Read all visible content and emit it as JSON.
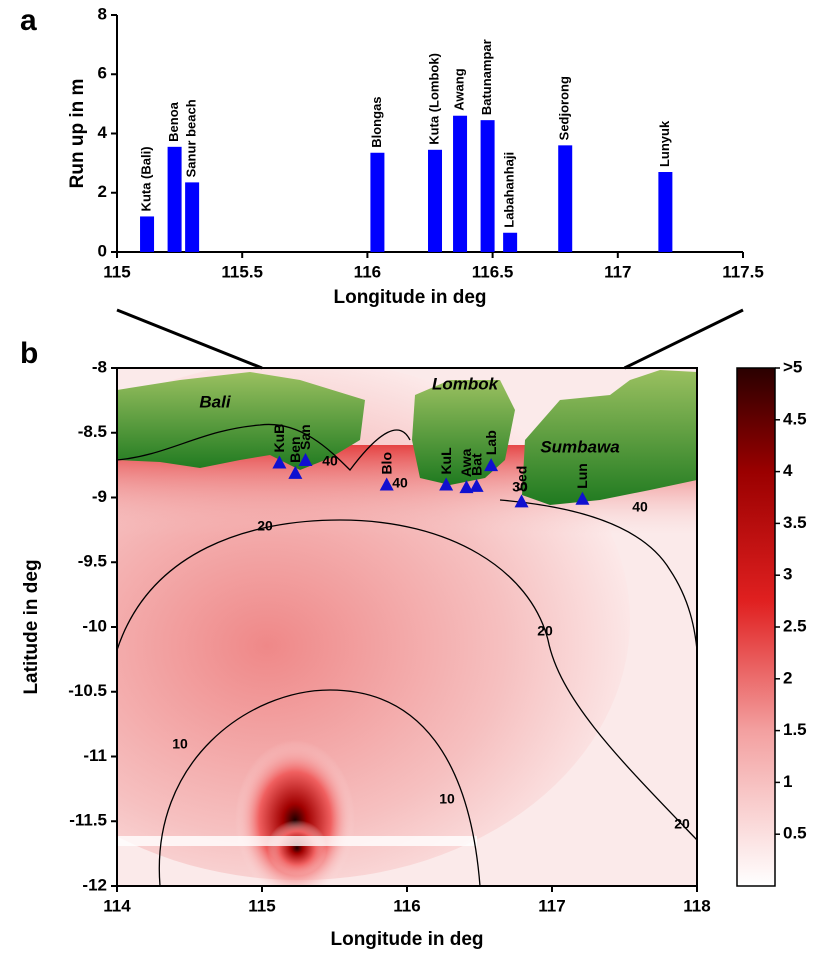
{
  "chart_data": [
    {
      "type": "bar",
      "panel": "a",
      "categories": [
        "Kuta (Bali)",
        "Benoa",
        "Sanur beach",
        "Blongas",
        "Kuta (Lombok)",
        "Awang",
        "Batunampar",
        "Labahanhaji",
        "Sedjorong",
        "Lunyuk"
      ],
      "x": [
        115.12,
        115.23,
        115.3,
        116.04,
        116.27,
        116.37,
        116.48,
        116.57,
        116.79,
        117.19
      ],
      "values": [
        1.2,
        3.55,
        2.35,
        3.35,
        3.45,
        4.6,
        4.45,
        0.65,
        3.6,
        2.7
      ],
      "color": "#0000ff",
      "xlim": [
        115,
        117.5
      ],
      "ylim": [
        0,
        8
      ],
      "xticks": [
        115,
        115.5,
        116,
        116.5,
        117,
        117.5
      ],
      "yticks": [
        0,
        2,
        4,
        6,
        8
      ],
      "xlabel": "Longitude in deg",
      "ylabel": "Run up in m"
    },
    {
      "type": "map",
      "panel": "b",
      "labels": [
        "KuB",
        "San",
        "Ben",
        "Blo",
        "KuL",
        "Awa",
        "Bat",
        "Lab",
        "Sed",
        "Lun"
      ],
      "x": [
        115.12,
        115.3,
        115.23,
        115.86,
        116.27,
        116.41,
        116.48,
        116.58,
        116.79,
        117.21
      ],
      "y": [
        -8.73,
        -8.71,
        -8.81,
        -8.9,
        -8.9,
        -8.92,
        -8.91,
        -8.75,
        -9.03,
        -9.01
      ],
      "color": "#1010d0",
      "xlim": [
        114,
        118
      ],
      "ylim": [
        -12,
        -8
      ],
      "xticks": [
        114,
        115,
        116,
        117,
        118
      ],
      "yticks": [
        -8,
        -8.5,
        -9,
        -9.5,
        -10,
        -10.5,
        -11,
        -11.5,
        -12
      ],
      "xlabel": "Longitude in deg",
      "ylabel": "Latitude in deg",
      "annotations": [
        "Bali",
        "Lombok",
        "Sumbawa"
      ],
      "contours": [
        10,
        20,
        30,
        40
      ],
      "colorbar_lim": [
        0,
        5
      ],
      "colorbar_ticks": [
        {
          "value": 5,
          "label": ">5"
        },
        4.5,
        4,
        3.5,
        3,
        2.5,
        2,
        1.5,
        1,
        0.5
      ]
    }
  ]
}
